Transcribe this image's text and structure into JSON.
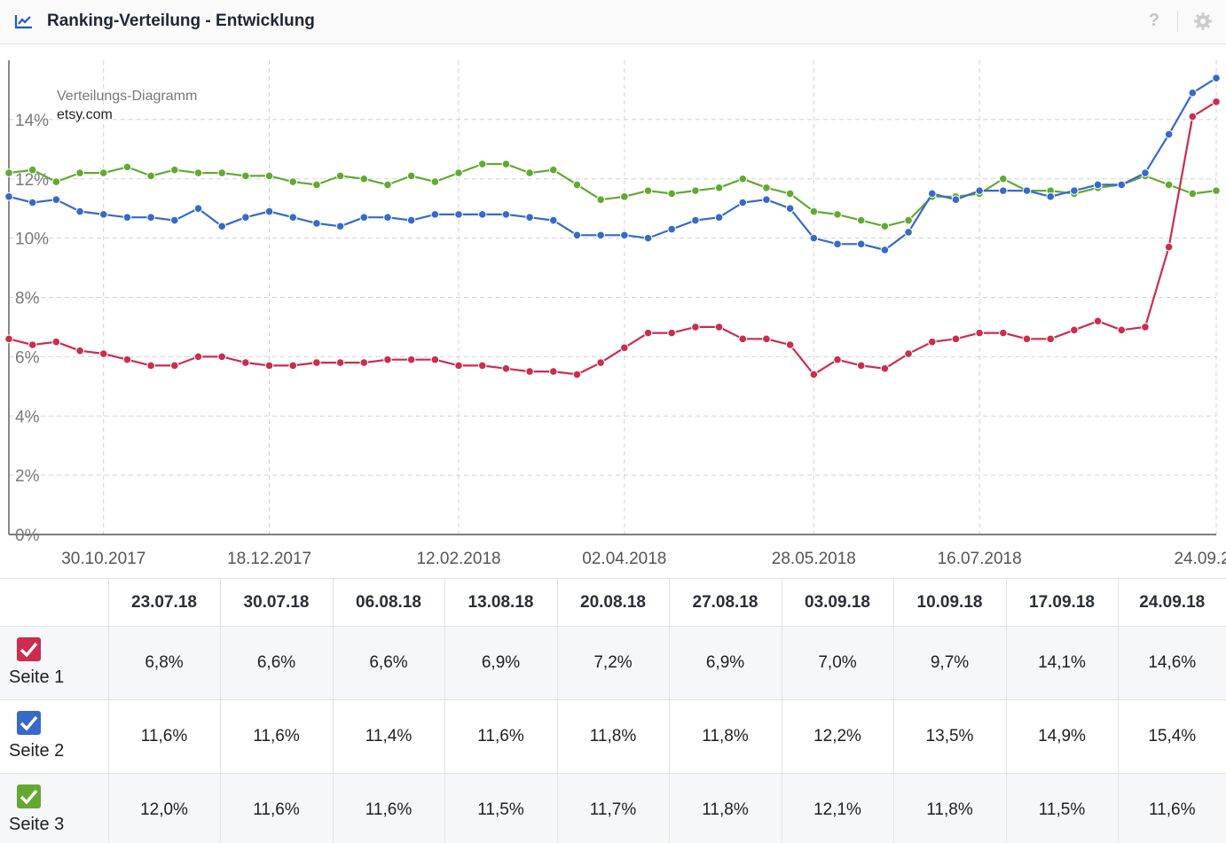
{
  "header": {
    "title": "Ranking-Verteilung - Entwicklung",
    "help_label": "?",
    "icons": [
      "trend-chart-icon",
      "help-icon",
      "gear-icon"
    ]
  },
  "chart_data": {
    "type": "line",
    "subtitle": "Verteilungs-Diagramm",
    "domain": "etsy.com",
    "ylim": [
      0,
      16
    ],
    "y_ticks": [
      "0%",
      "2%",
      "4%",
      "6%",
      "8%",
      "10%",
      "12%",
      "14%"
    ],
    "y_tick_values": [
      0,
      2,
      4,
      6,
      8,
      10,
      12,
      14
    ],
    "x_tick_labels": [
      "30.10.2017",
      "18.12.2017",
      "12.02.2018",
      "02.04.2018",
      "28.05.2018",
      "16.07.2018",
      "24.09.2018"
    ],
    "x_tick_index": [
      4,
      11,
      19,
      26,
      34,
      41,
      51
    ],
    "grid": true,
    "legend": "none",
    "series": [
      {
        "name": "Seite 1",
        "color": "#cc2c4e",
        "values": [
          6.6,
          6.4,
          6.5,
          6.2,
          6.1,
          5.9,
          5.7,
          5.7,
          6.0,
          6.0,
          5.8,
          5.7,
          5.7,
          5.8,
          5.8,
          5.8,
          5.9,
          5.9,
          5.9,
          5.7,
          5.7,
          5.6,
          5.5,
          5.5,
          5.4,
          5.8,
          6.3,
          6.8,
          6.8,
          7.0,
          7.0,
          6.6,
          6.6,
          6.4,
          5.4,
          5.9,
          5.7,
          5.6,
          6.1,
          6.5,
          6.6,
          6.8,
          6.8,
          6.6,
          6.6,
          6.9,
          7.2,
          6.9,
          7.0,
          9.7,
          14.1,
          14.6
        ]
      },
      {
        "name": "Seite 2",
        "color": "#3669c9",
        "values": [
          11.4,
          11.2,
          11.3,
          10.9,
          10.8,
          10.7,
          10.7,
          10.6,
          11.0,
          10.4,
          10.7,
          10.9,
          10.7,
          10.5,
          10.4,
          10.7,
          10.7,
          10.6,
          10.8,
          10.8,
          10.8,
          10.8,
          10.7,
          10.6,
          10.1,
          10.1,
          10.1,
          10.0,
          10.3,
          10.6,
          10.7,
          11.2,
          11.3,
          11.0,
          10.0,
          9.8,
          9.8,
          9.6,
          10.2,
          11.5,
          11.3,
          11.6,
          11.6,
          11.6,
          11.4,
          11.6,
          11.8,
          11.8,
          12.2,
          13.5,
          14.9,
          15.4
        ]
      },
      {
        "name": "Seite 3",
        "color": "#62a931",
        "values": [
          12.2,
          12.3,
          11.9,
          12.2,
          12.2,
          12.4,
          12.1,
          12.3,
          12.2,
          12.2,
          12.1,
          12.1,
          11.9,
          11.8,
          12.1,
          12.0,
          11.8,
          12.1,
          11.9,
          12.2,
          12.5,
          12.5,
          12.2,
          12.3,
          11.8,
          11.3,
          11.4,
          11.6,
          11.5,
          11.6,
          11.7,
          12.0,
          11.7,
          11.5,
          10.9,
          10.8,
          10.6,
          10.4,
          10.6,
          11.4,
          11.4,
          11.5,
          12.0,
          11.6,
          11.6,
          11.5,
          11.7,
          11.8,
          12.1,
          11.8,
          11.5,
          11.6
        ]
      }
    ]
  },
  "table": {
    "columns": [
      "23.07.18",
      "30.07.18",
      "06.08.18",
      "13.08.18",
      "20.08.18",
      "27.08.18",
      "03.09.18",
      "10.09.18",
      "17.09.18",
      "24.09.18"
    ],
    "rows": [
      {
        "label": "Seite 1",
        "color": "#cc2c4e",
        "values": [
          "6,8%",
          "6,6%",
          "6,6%",
          "6,9%",
          "7,2%",
          "6,9%",
          "7,0%",
          "9,7%",
          "14,1%",
          "14,6%"
        ]
      },
      {
        "label": "Seite 2",
        "color": "#3669c9",
        "values": [
          "11,6%",
          "11,6%",
          "11,4%",
          "11,6%",
          "11,8%",
          "11,8%",
          "12,2%",
          "13,5%",
          "14,9%",
          "15,4%"
        ]
      },
      {
        "label": "Seite 3",
        "color": "#62a931",
        "values": [
          "12,0%",
          "11,6%",
          "11,6%",
          "11,5%",
          "11,7%",
          "11,8%",
          "12,1%",
          "11,8%",
          "11,5%",
          "11,6%"
        ]
      }
    ]
  }
}
